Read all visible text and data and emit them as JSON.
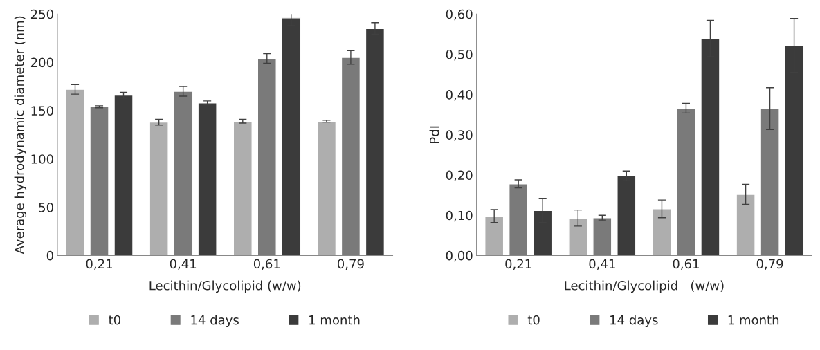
{
  "chart_data": [
    {
      "type": "bar",
      "xlabel": "Lecithin/Glycolipid (w/w)",
      "ylabel": "Average hydrodynamic diameter (nm)",
      "categories": [
        "0,21",
        "0,41",
        "0,61",
        "0,79"
      ],
      "series": [
        {
          "name": "t0",
          "color": "#aeaeae",
          "values": [
            172,
            138,
            139,
            139
          ],
          "errors": [
            5,
            3,
            2,
            1
          ]
        },
        {
          "name": "14 days",
          "color": "#7a7a7a",
          "values": [
            154,
            170,
            204,
            205
          ],
          "errors": [
            1,
            5,
            5,
            7
          ]
        },
        {
          "name": "1 month",
          "color": "#3b3b3b",
          "values": [
            166,
            158,
            246,
            235
          ],
          "errors": [
            3,
            2,
            8,
            6
          ]
        }
      ],
      "ylim": [
        0,
        250
      ],
      "yticks": [
        0,
        50,
        100,
        150,
        200,
        250
      ],
      "grid": false,
      "legend": "bottom"
    },
    {
      "type": "bar",
      "xlabel": "Lecithin/Glycolipid   (w/w)",
      "ylabel": "PdI",
      "categories": [
        "0,21",
        "0,41",
        "0,61",
        "0,79"
      ],
      "series": [
        {
          "name": "t0",
          "color": "#aeaeae",
          "values": [
            0.098,
            0.093,
            0.116,
            0.152
          ],
          "errors": [
            0.016,
            0.02,
            0.022,
            0.025
          ]
        },
        {
          "name": "14 days",
          "color": "#7a7a7a",
          "values": [
            0.178,
            0.094,
            0.366,
            0.365
          ],
          "errors": [
            0.01,
            0.006,
            0.012,
            0.052
          ]
        },
        {
          "name": "1 month",
          "color": "#3b3b3b",
          "values": [
            0.112,
            0.198,
            0.539,
            0.522
          ],
          "errors": [
            0.03,
            0.012,
            0.045,
            0.067
          ]
        }
      ],
      "ylim": [
        0,
        0.6
      ],
      "yticks": [
        {
          "value": 0,
          "label": "0,00"
        },
        {
          "value": 0.1,
          "label": "0,10"
        },
        {
          "value": 0.2,
          "label": "0,20"
        },
        {
          "value": 0.3,
          "label": "0,30"
        },
        {
          "value": 0.4,
          "label": "0,40"
        },
        {
          "value": 0.5,
          "label": "0,50"
        },
        {
          "value": 0.6,
          "label": "0,60"
        }
      ],
      "grid": false,
      "legend": "bottom"
    }
  ]
}
